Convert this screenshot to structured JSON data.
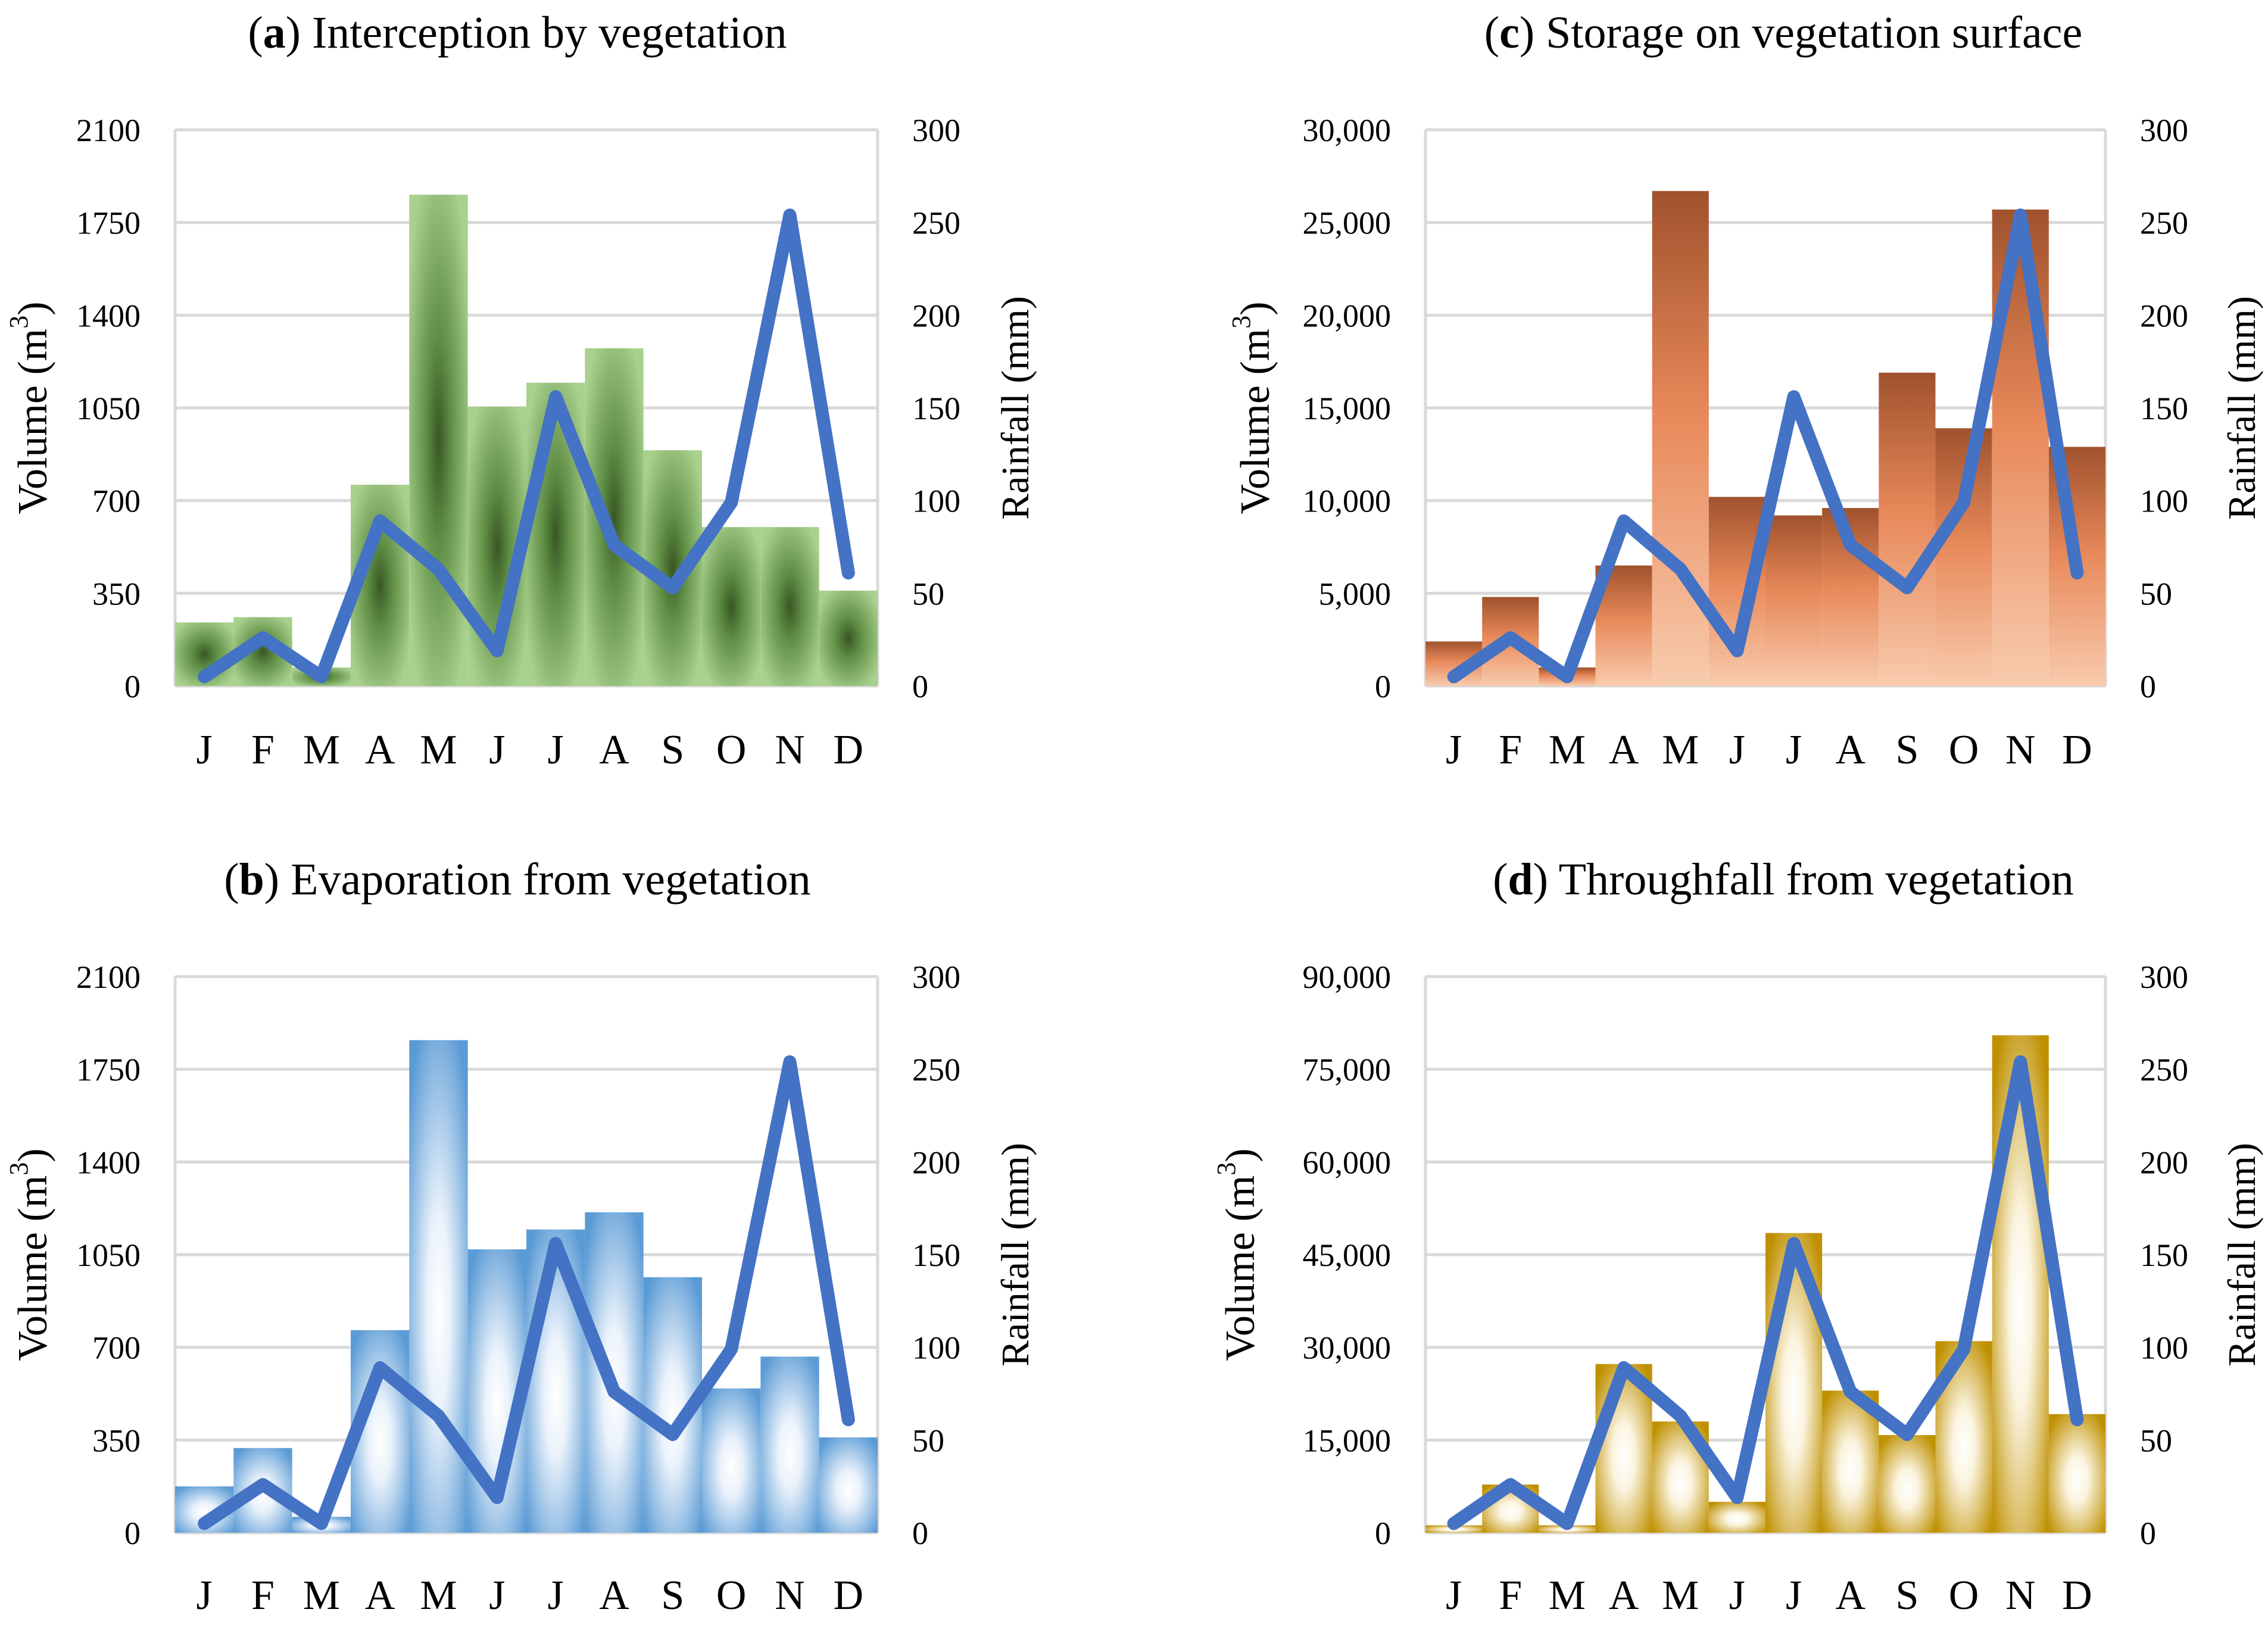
{
  "colors": {
    "rainfall_line": "#4472C4",
    "grid": "#D9D9D9",
    "axis_text": "#000000"
  },
  "chart_data": [
    {
      "id": "a",
      "type": "bar",
      "title_letter": "a",
      "title_text": "Interception by vegetation",
      "categories": [
        "J",
        "F",
        "M",
        "A",
        "M",
        "J",
        "J",
        "A",
        "S",
        "O",
        "N",
        "D"
      ],
      "ylabel": "Volume (m",
      "ylabel_sup": "3",
      "ylabel_close": ")",
      "y2label": "Rainfall (mm)",
      "ylim": [
        0,
        2100
      ],
      "y2lim": [
        0,
        300
      ],
      "yticks": [
        "0",
        "350",
        "700",
        "1050",
        "1400",
        "1750",
        "2100"
      ],
      "y2ticks": [
        "0",
        "50",
        "100",
        "150",
        "200",
        "250",
        "300"
      ],
      "bar_style": "green",
      "bar_colors": [
        "#A9D18E",
        "#385723"
      ],
      "series": [
        {
          "name": "Volume",
          "axis": "left",
          "values": [
            240,
            260,
            70,
            760,
            1855,
            1055,
            1145,
            1275,
            890,
            600,
            600,
            360
          ]
        },
        {
          "name": "Rainfall",
          "axis": "right",
          "values": [
            5,
            26,
            5,
            89,
            63,
            19,
            156,
            76,
            53,
            99,
            254,
            61
          ]
        }
      ]
    },
    {
      "id": "c",
      "type": "bar",
      "title_letter": "c",
      "title_text": "Storage on vegetation surface",
      "categories": [
        "J",
        "F",
        "M",
        "A",
        "M",
        "J",
        "J",
        "A",
        "S",
        "O",
        "N",
        "D"
      ],
      "ylabel": "Volume (m",
      "ylabel_sup": "3",
      "ylabel_close": ")",
      "y2label": "Rainfall (mm)",
      "ylim": [
        0,
        30000
      ],
      "y2lim": [
        0,
        300
      ],
      "yticks": [
        "0",
        "5,000",
        "10,000",
        "15,000",
        "20,000",
        "25,000",
        "30,000"
      ],
      "y2ticks": [
        "0",
        "50",
        "100",
        "150",
        "200",
        "250",
        "300"
      ],
      "bar_style": "orange",
      "bar_colors": [
        "#F8CBAD",
        "#A0522D"
      ],
      "series": [
        {
          "name": "Volume",
          "axis": "left",
          "values": [
            2400,
            4800,
            1000,
            6500,
            26700,
            10200,
            9200,
            9600,
            16900,
            13900,
            25700,
            12900
          ]
        },
        {
          "name": "Rainfall",
          "axis": "right",
          "values": [
            5,
            26,
            5,
            89,
            63,
            19,
            156,
            76,
            53,
            99,
            254,
            61
          ]
        }
      ]
    },
    {
      "id": "b",
      "type": "bar",
      "title_letter": "b",
      "title_text": "Evaporation from vegetation",
      "categories": [
        "J",
        "F",
        "M",
        "A",
        "M",
        "J",
        "J",
        "A",
        "S",
        "O",
        "N",
        "D"
      ],
      "ylabel": "Volume (m",
      "ylabel_sup": "3",
      "ylabel_close": ")",
      "y2label": "Rainfall (mm)",
      "ylim": [
        0,
        2100
      ],
      "y2lim": [
        0,
        300
      ],
      "yticks": [
        "0",
        "350",
        "700",
        "1050",
        "1400",
        "1750",
        "2100"
      ],
      "y2ticks": [
        "0",
        "50",
        "100",
        "150",
        "200",
        "250",
        "300"
      ],
      "bar_style": "blue",
      "bar_colors": [
        "#FFFFFF",
        "#5B9BD5"
      ],
      "series": [
        {
          "name": "Volume",
          "axis": "left",
          "values": [
            175,
            320,
            60,
            765,
            1860,
            1070,
            1145,
            1210,
            965,
            545,
            665,
            360
          ]
        },
        {
          "name": "Rainfall",
          "axis": "right",
          "values": [
            5,
            26,
            5,
            89,
            63,
            19,
            156,
            76,
            53,
            99,
            254,
            61
          ]
        }
      ]
    },
    {
      "id": "d",
      "type": "bar",
      "title_letter": "d",
      "title_text": "Throughfall from vegetation",
      "categories": [
        "J",
        "F",
        "M",
        "A",
        "M",
        "J",
        "J",
        "A",
        "S",
        "O",
        "N",
        "D"
      ],
      "ylabel": "Volume (m",
      "ylabel_sup": "3",
      "ylabel_close": ")",
      "y2label": "Rainfall (mm)",
      "ylim": [
        0,
        90000
      ],
      "y2lim": [
        0,
        300
      ],
      "yticks": [
        "0",
        "15,000",
        "30,000",
        "45,000",
        "60,000",
        "75,000",
        "90,000"
      ],
      "y2ticks": [
        "0",
        "50",
        "100",
        "150",
        "200",
        "250",
        "300"
      ],
      "bar_style": "gold",
      "bar_colors": [
        "#FFFFFF",
        "#BF9000"
      ],
      "series": [
        {
          "name": "Volume",
          "axis": "left",
          "values": [
            1200,
            7800,
            1200,
            27300,
            18000,
            5000,
            48500,
            23000,
            15800,
            31000,
            80500,
            19200
          ]
        },
        {
          "name": "Rainfall",
          "axis": "right",
          "values": [
            5,
            26,
            5,
            89,
            63,
            19,
            156,
            76,
            53,
            99,
            254,
            61
          ]
        }
      ]
    }
  ]
}
